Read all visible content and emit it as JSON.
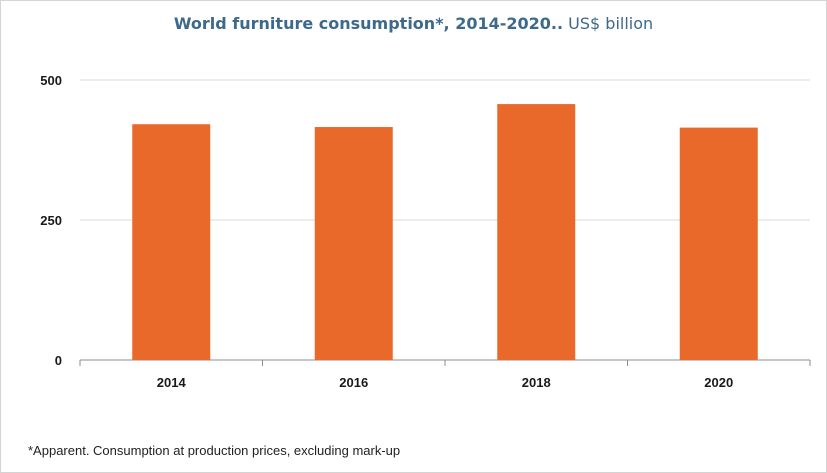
{
  "title": {
    "main": "World furniture consumption*, 2014-2020..",
    "unit": "US$ billion"
  },
  "footnote": "*Apparent. Consumption at production prices, excluding mark-up",
  "colors": {
    "bar": "#e8692a",
    "title": "#3d6a8a",
    "grid": "#d9d9d9",
    "axis": "#8c8c8c",
    "text": "#1a1a1a"
  },
  "chart_data": {
    "type": "bar",
    "title": "World furniture consumption*, 2014-2020..",
    "subtitle": "US$ billion",
    "xlabel": "",
    "ylabel": "",
    "categories": [
      "2014",
      "2016",
      "2018",
      "2020"
    ],
    "values": [
      421,
      416,
      457,
      415
    ],
    "ylim": [
      0,
      500
    ],
    "yticks": [
      0,
      250,
      500
    ],
    "grid": true,
    "legend": "none"
  }
}
